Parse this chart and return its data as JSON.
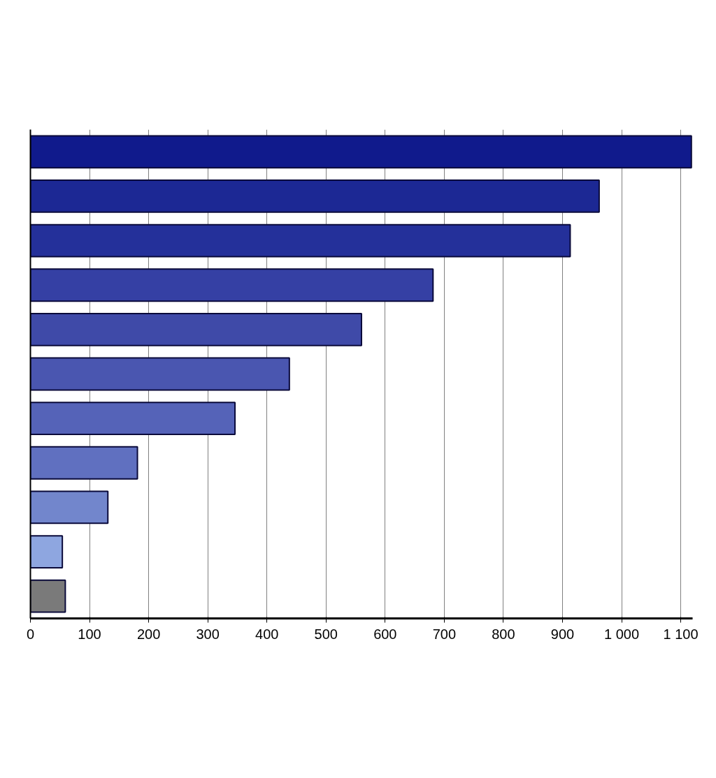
{
  "chart_data": {
    "type": "bar",
    "orientation": "horizontal",
    "categories": [
      null,
      null,
      null,
      null,
      null,
      null,
      null,
      null,
      null,
      null,
      null
    ],
    "values": [
      1118,
      962,
      913,
      681,
      560,
      438,
      346,
      181,
      131,
      54,
      59
    ],
    "colors": [
      "#101a8c",
      "#1c2894",
      "#24309a",
      "#3540a4",
      "#3f4aa8",
      "#4a56b0",
      "#5563b8",
      "#6070c0",
      "#7286cc",
      "#8ea6e0",
      "#7a7a7a"
    ],
    "xlim": [
      0,
      1120
    ],
    "xticks": [
      0,
      100,
      200,
      300,
      400,
      500,
      600,
      700,
      800,
      900,
      {
        "value": 1000,
        "label": "1 000"
      },
      {
        "value": 1100,
        "label": "1 100"
      }
    ],
    "grid": "x",
    "tick_labels": "x"
  }
}
